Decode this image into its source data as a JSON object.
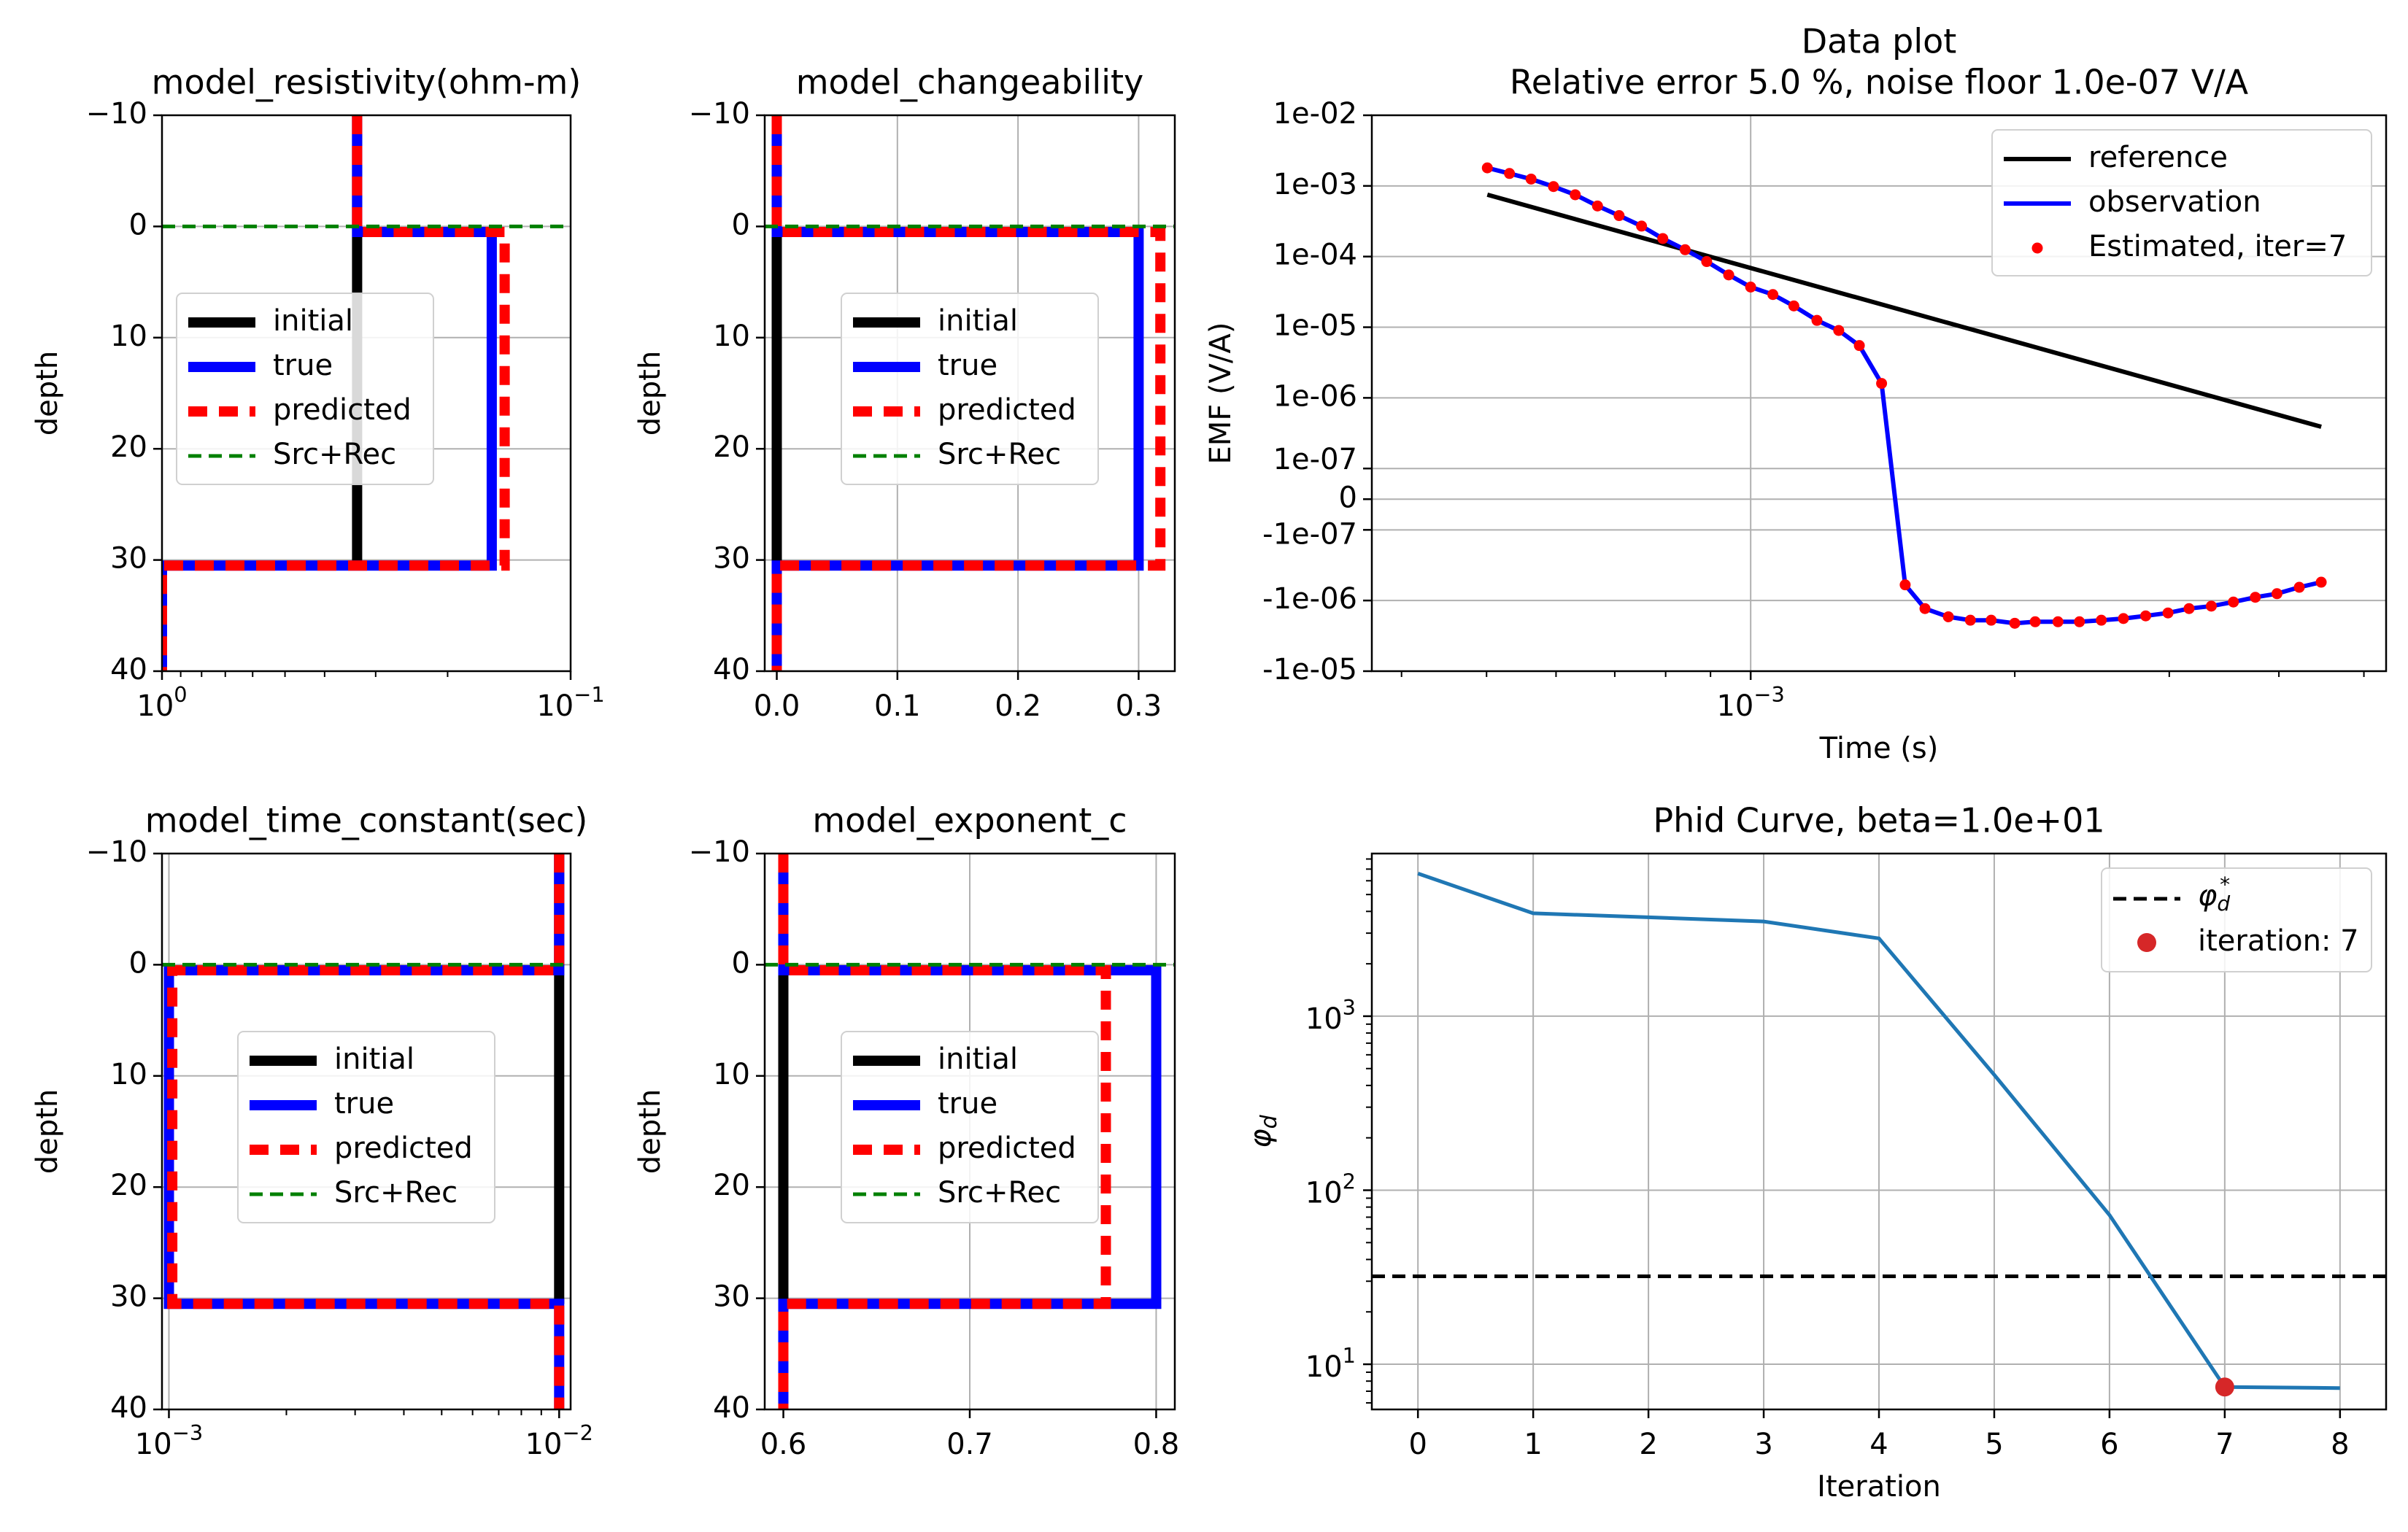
{
  "figure_title": "",
  "legend_labels": {
    "initial": "initial",
    "true": "true",
    "predicted": "predicted",
    "srcrec": "Src+Rec"
  },
  "colors": {
    "initial": "#000000",
    "true": "#0000ff",
    "predicted": "#ff0000",
    "srcrec": "#008000",
    "phid": "#1f77b4",
    "marker": "#d62728",
    "grid": "#b0b0b0"
  },
  "chart_data": [
    {
      "id": "resistivity",
      "type": "line",
      "title": "model_resistivity(ohm-m)",
      "xlabel": "",
      "ylabel": "depth",
      "xscale": "log",
      "xlim": [
        1.0,
        0.1
      ],
      "ylim": [
        40,
        -10
      ],
      "xticks": [
        {
          "v": 1.0,
          "base": "10",
          "exp": "0"
        },
        {
          "v": 0.1,
          "base": "10",
          "exp": "−1"
        }
      ],
      "yticks": [
        -10,
        0,
        10,
        20,
        30,
        40
      ],
      "legend": "center-left",
      "series": [
        {
          "name": "initial",
          "x": [
            0.333,
            0.333
          ],
          "y": [
            -10,
            30.5
          ]
        },
        {
          "name": "true",
          "x": [
            0.333,
            0.333,
            0.156,
            0.156,
            1.0,
            1.0
          ],
          "y": [
            -10,
            0.5,
            0.5,
            30.5,
            30.5,
            40
          ]
        },
        {
          "name": "predicted",
          "x": [
            0.333,
            0.333,
            0.145,
            0.145,
            1.0,
            1.0
          ],
          "y": [
            -10,
            0.5,
            0.5,
            30.5,
            30.5,
            40
          ]
        },
        {
          "name": "Src+Rec",
          "x": [
            1.0,
            0.1
          ],
          "y": [
            0,
            0
          ]
        }
      ]
    },
    {
      "id": "changeability",
      "type": "line",
      "title": "model_changeability",
      "xlabel": "",
      "ylabel": "depth",
      "xscale": "linear",
      "xlim": [
        -0.01,
        0.33
      ],
      "ylim": [
        40,
        -10
      ],
      "xticks": [
        0.0,
        0.1,
        0.2,
        0.3
      ],
      "xtickfmt": 1,
      "yticks": [
        -10,
        0,
        10,
        20,
        30,
        40
      ],
      "legend": "center",
      "series": [
        {
          "name": "initial",
          "x": [
            0.0,
            0.0
          ],
          "y": [
            -10,
            30.5
          ]
        },
        {
          "name": "true",
          "x": [
            0.0,
            0.0,
            0.3,
            0.3,
            0.0,
            0.0
          ],
          "y": [
            -10,
            0.5,
            0.5,
            30.5,
            30.5,
            40
          ]
        },
        {
          "name": "predicted",
          "x": [
            0.0,
            0.0,
            0.318,
            0.318,
            0.0,
            0.0
          ],
          "y": [
            -10,
            0.5,
            0.5,
            30.5,
            30.5,
            40
          ]
        },
        {
          "name": "Src+Rec",
          "x": [
            -0.01,
            0.33
          ],
          "y": [
            0,
            0
          ]
        }
      ]
    },
    {
      "id": "time_constant",
      "type": "line",
      "title": "model_time_constant(sec)",
      "xlabel": "",
      "ylabel": "depth",
      "xscale": "log",
      "xlim": [
        0.00096,
        0.0107
      ],
      "ylim": [
        40,
        -10
      ],
      "xticks": [
        {
          "v": 0.001,
          "base": "10",
          "exp": "−3"
        },
        {
          "v": 0.01,
          "base": "10",
          "exp": "−2"
        }
      ],
      "yticks": [
        -10,
        0,
        10,
        20,
        30,
        40
      ],
      "legend": "center",
      "series": [
        {
          "name": "initial",
          "x": [
            0.01,
            0.01
          ],
          "y": [
            -10,
            30.5
          ]
        },
        {
          "name": "true",
          "x": [
            0.01,
            0.01,
            0.001,
            0.001,
            0.01,
            0.01
          ],
          "y": [
            -10,
            0.5,
            0.5,
            30.5,
            30.5,
            40
          ]
        },
        {
          "name": "predicted",
          "x": [
            0.01,
            0.01,
            0.00102,
            0.00102,
            0.01,
            0.01
          ],
          "y": [
            -10,
            0.5,
            0.5,
            30.5,
            30.5,
            40
          ]
        },
        {
          "name": "Src+Rec",
          "x": [
            0.00096,
            0.0107
          ],
          "y": [
            0,
            0
          ]
        }
      ]
    },
    {
      "id": "exponent_c",
      "type": "line",
      "title": "model_exponent_c",
      "xlabel": "",
      "ylabel": "depth",
      "xscale": "linear",
      "xlim": [
        0.59,
        0.81
      ],
      "ylim": [
        40,
        -10
      ],
      "xticks": [
        0.6,
        0.7,
        0.8
      ],
      "xtickfmt": 1,
      "yticks": [
        -10,
        0,
        10,
        20,
        30,
        40
      ],
      "legend": "center",
      "series": [
        {
          "name": "initial",
          "x": [
            0.6,
            0.6
          ],
          "y": [
            -10,
            30.5
          ]
        },
        {
          "name": "true",
          "x": [
            0.6,
            0.6,
            0.8,
            0.8,
            0.6,
            0.6
          ],
          "y": [
            -10,
            0.5,
            0.5,
            30.5,
            30.5,
            40
          ]
        },
        {
          "name": "predicted",
          "x": [
            0.6,
            0.6,
            0.773,
            0.773,
            0.6,
            0.6
          ],
          "y": [
            -10,
            0.5,
            0.5,
            30.5,
            30.5,
            40
          ]
        },
        {
          "name": "Src+Rec",
          "x": [
            0.59,
            0.81
          ],
          "y": [
            0,
            0
          ]
        }
      ]
    },
    {
      "id": "data_plot",
      "type": "line",
      "title": "Data plot",
      "subtitle": "Relative error 5.0 %, noise floor 1.0e-07 V/A",
      "xlabel": "Time (s)",
      "ylabel": "EMF (V/A)",
      "xscale": "log",
      "yscale": "symlog",
      "linthresh": 1e-07,
      "xlim": [
        0.00037,
        0.0053
      ],
      "ylim": [
        -1e-05,
        0.01
      ],
      "xticks": [
        {
          "v": 0.001,
          "base": "10",
          "exp": "−3"
        }
      ],
      "yticks": [
        {
          "v": 0.01,
          "label": "1e-02"
        },
        {
          "v": 0.001,
          "label": "1e-03"
        },
        {
          "v": 0.0001,
          "label": "1e-04"
        },
        {
          "v": 1e-05,
          "label": "1e-05"
        },
        {
          "v": 1e-06,
          "label": "1e-06"
        },
        {
          "v": 1e-07,
          "label": "1e-07"
        },
        {
          "v": 0,
          "label": "0"
        },
        {
          "v": -1e-07,
          "label": "-1e-07"
        },
        {
          "v": -1e-06,
          "label": "-1e-06"
        },
        {
          "v": -1e-05,
          "label": "-1e-05"
        }
      ],
      "legend": "top-right",
      "time": [
        0.000501,
        0.000531,
        0.000562,
        0.000596,
        0.000631,
        0.000669,
        0.000708,
        0.000751,
        0.000794,
        0.000842,
        0.000891,
        0.000944,
        0.001,
        0.00106,
        0.00112,
        0.00119,
        0.00126,
        0.00133,
        0.00141,
        0.0015,
        0.00158,
        0.00168,
        0.00178,
        0.00188,
        0.002,
        0.00211,
        0.00224,
        0.00237,
        0.00251,
        0.00266,
        0.00282,
        0.00299,
        0.00316,
        0.00335,
        0.00355,
        0.00376,
        0.00398,
        0.00422,
        0.00447
      ],
      "series": [
        {
          "name": "reference",
          "t": [
            0.000501,
            0.00447
          ],
          "y": [
            0.00075,
            3.9e-07
          ]
        },
        {
          "name": "observation",
          "t": [
            0.000501,
            0.000531,
            0.000562,
            0.000596,
            0.000631,
            0.000669,
            0.000708,
            0.000751,
            0.000794,
            0.000842,
            0.000891,
            0.000944,
            0.001,
            0.00106,
            0.00112,
            0.00119,
            0.00126,
            0.00133,
            0.00141,
            0.0015,
            0.00158,
            0.00168,
            0.00178,
            0.00188,
            0.002,
            0.00211,
            0.00224,
            0.00237,
            0.00251,
            0.00266,
            0.00282,
            0.00299,
            0.00316,
            0.00335,
            0.00355,
            0.00376,
            0.00398,
            0.00422,
            0.00447
          ],
          "y": [
            0.0018,
            0.0015,
            0.00125,
            0.00098,
            0.00075,
            0.00052,
            0.00038,
            0.00027,
            0.00018,
            0.000125,
            8.5e-05,
            5.5e-05,
            3.7e-05,
            2.9e-05,
            2e-05,
            1.25e-05,
            9e-06,
            5.5e-06,
            1.6e-06,
            -6e-07,
            -1.3e-06,
            -1.7e-06,
            -1.9e-06,
            -1.9e-06,
            -2.1e-06,
            -2e-06,
            -2e-06,
            -2e-06,
            -1.9e-06,
            -1.8e-06,
            -1.65e-06,
            -1.5e-06,
            -1.3e-06,
            -1.2e-06,
            -1.05e-06,
            -9e-07,
            -8e-07,
            -6.5e-07,
            -5.5e-07
          ]
        },
        {
          "name": "Estimated, iter=7",
          "t": [
            0.000501,
            0.000531,
            0.000562,
            0.000596,
            0.000631,
            0.000669,
            0.000708,
            0.000751,
            0.000794,
            0.000842,
            0.000891,
            0.000944,
            0.001,
            0.00106,
            0.00112,
            0.00119,
            0.00126,
            0.00133,
            0.00141,
            0.0015,
            0.00158,
            0.00168,
            0.00178,
            0.00188,
            0.002,
            0.00211,
            0.00224,
            0.00237,
            0.00251,
            0.00266,
            0.00282,
            0.00299,
            0.00316,
            0.00335,
            0.00355,
            0.00376,
            0.00398,
            0.00422,
            0.00447
          ],
          "y": [
            0.0018,
            0.0015,
            0.00125,
            0.00098,
            0.00075,
            0.00052,
            0.00038,
            0.00027,
            0.00018,
            0.000125,
            8.5e-05,
            5.5e-05,
            3.7e-05,
            2.9e-05,
            2e-05,
            1.25e-05,
            9e-06,
            5.5e-06,
            1.6e-06,
            -6e-07,
            -1.3e-06,
            -1.7e-06,
            -1.9e-06,
            -1.9e-06,
            -2.1e-06,
            -2e-06,
            -2e-06,
            -2e-06,
            -1.9e-06,
            -1.8e-06,
            -1.65e-06,
            -1.5e-06,
            -1.3e-06,
            -1.2e-06,
            -1.05e-06,
            -9e-07,
            -8e-07,
            -6.5e-07,
            -5.5e-07
          ]
        }
      ]
    },
    {
      "id": "phid",
      "type": "line",
      "title": "Phid Curve, beta=1.0e+01",
      "xlabel": "Iteration",
      "ylabel": "φd",
      "xscale": "linear",
      "yscale": "log",
      "xlim": [
        -0.4,
        8.4
      ],
      "ylim": [
        5.5,
        8600
      ],
      "xticks": [
        0,
        1,
        2,
        3,
        4,
        5,
        6,
        7,
        8
      ],
      "yticks": [
        {
          "v": 10,
          "base": "10",
          "exp": "1"
        },
        {
          "v": 100,
          "base": "10",
          "exp": "2"
        },
        {
          "v": 1000,
          "base": "10",
          "exp": "3"
        }
      ],
      "legend": "top-right",
      "x": [
        0,
        1,
        2,
        3,
        4,
        5,
        6,
        7,
        8
      ],
      "y": [
        6600,
        3900,
        3700,
        3500,
        2800,
        460,
        72,
        7.4,
        7.3
      ],
      "target": 32,
      "target_label": "φd*",
      "marker_label": "iteration: 7",
      "marker_iteration": 7
    }
  ]
}
